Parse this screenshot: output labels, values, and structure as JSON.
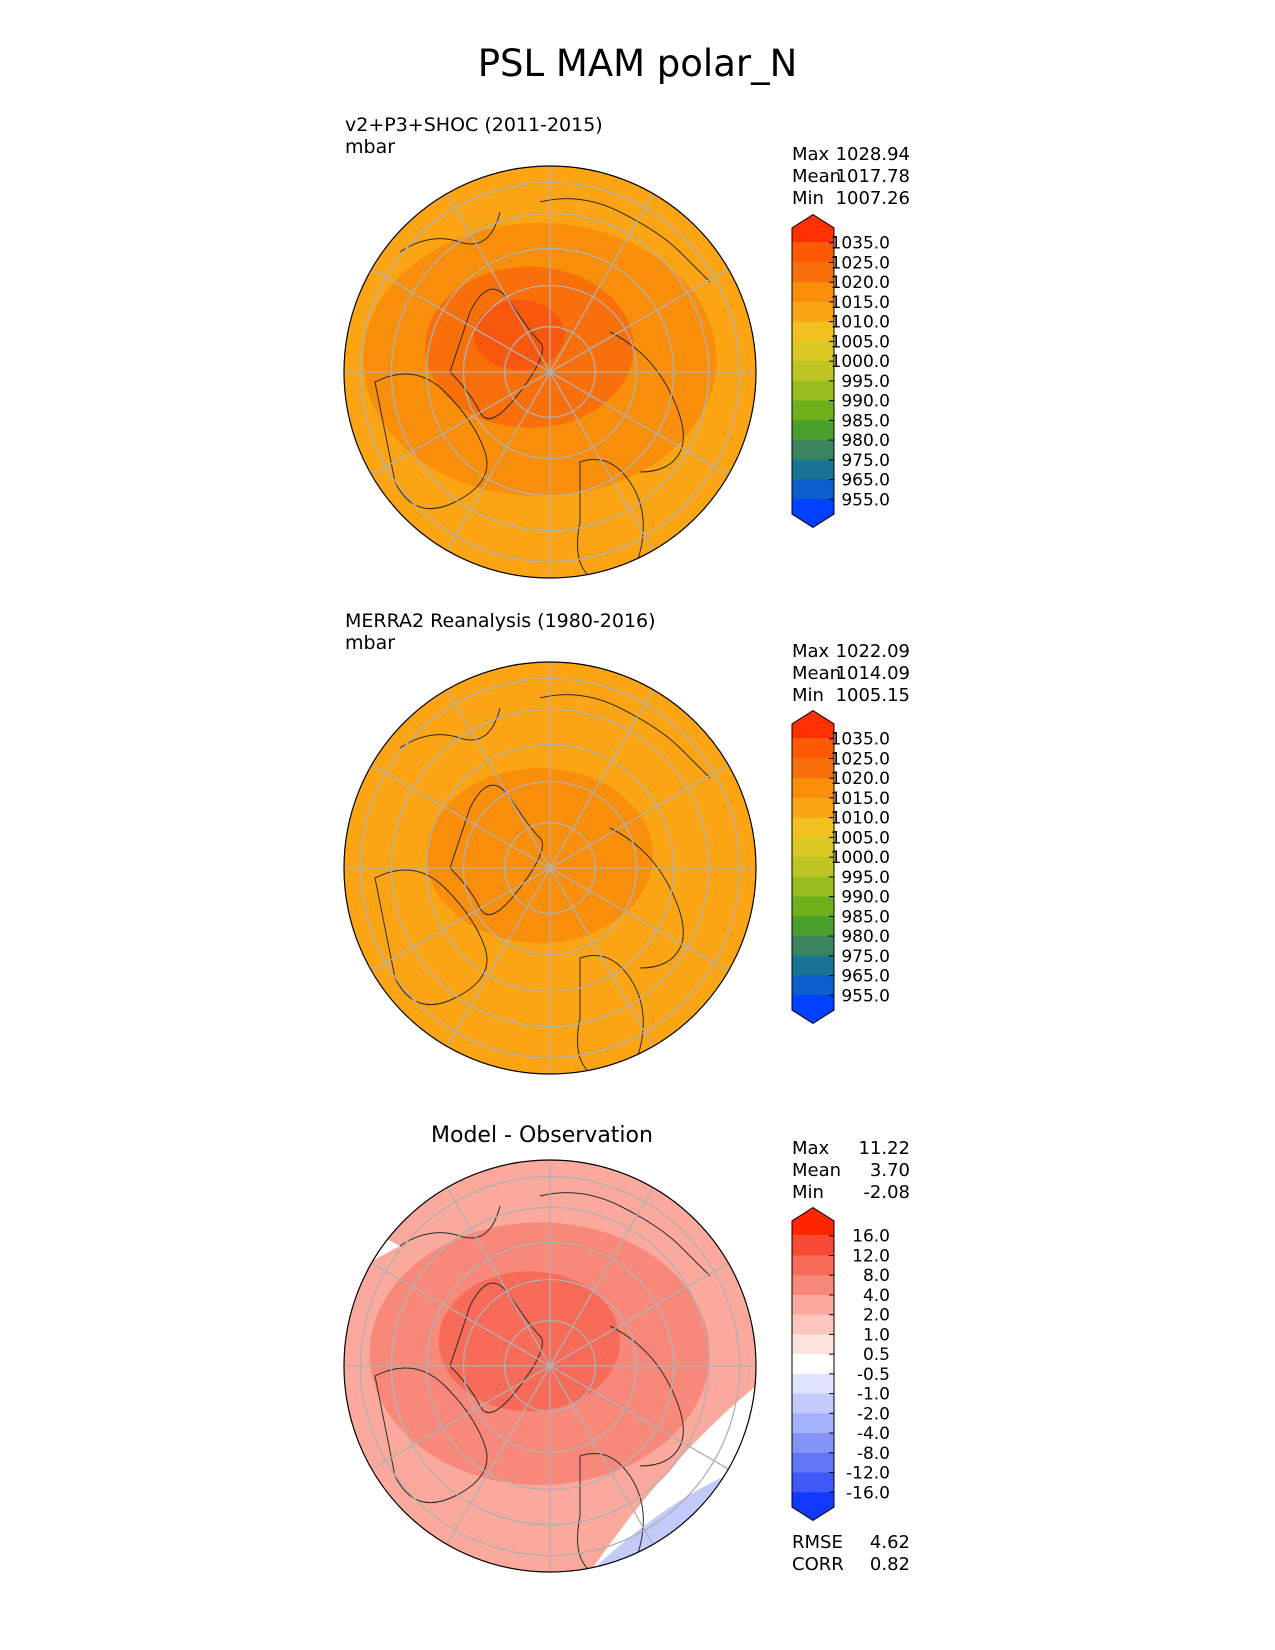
{
  "figure_title": "PSL MAM polar_N",
  "panels": [
    {
      "id": "model",
      "title_lines": [
        "v2+P3+SHOC (2011-2015)",
        "mbar"
      ],
      "center_title": "",
      "stats": [
        {
          "label": "Max",
          "value": "1028.94"
        },
        {
          "label": "Mean",
          "value": "1017.78"
        },
        {
          "label": "Min",
          "value": "1007.26"
        }
      ],
      "colorbar": "abs",
      "map_levels": [
        {
          "r": 1.0,
          "color": "#FBA515"
        },
        {
          "r": 0.78,
          "color": "#F98E0B"
        },
        {
          "r": 0.46,
          "color": "#F96F0A"
        },
        {
          "r": 0.2,
          "color": "#F7580D"
        }
      ]
    },
    {
      "id": "obs",
      "title_lines": [
        "MERRA2 Reanalysis (1980-2016)",
        "mbar"
      ],
      "center_title": "",
      "stats": [
        {
          "label": "Max",
          "value": "1022.09"
        },
        {
          "label": "Mean",
          "value": "1014.09"
        },
        {
          "label": "Min",
          "value": "1005.15"
        }
      ],
      "colorbar": "abs",
      "map_levels": [
        {
          "r": 1.0,
          "color": "#FBA515"
        },
        {
          "r": 0.5,
          "color": "#F98E0B"
        }
      ]
    },
    {
      "id": "diff",
      "title_lines": [],
      "center_title": "Model - Observation",
      "stats": [
        {
          "label": "Max",
          "value": "11.22"
        },
        {
          "label": "Mean",
          "value": "3.70"
        },
        {
          "label": "Min",
          "value": "-2.08"
        }
      ],
      "extra_stats": [
        {
          "label": "RMSE",
          "value": "4.62"
        },
        {
          "label": "CORR",
          "value": "0.82"
        }
      ],
      "colorbar": "diff",
      "map_levels": [
        {
          "r": 1.0,
          "color": "#FBA99C"
        },
        {
          "r": 0.75,
          "color": "#F8897A"
        },
        {
          "r": 0.4,
          "color": "#F76B58"
        }
      ]
    }
  ],
  "colorbars": {
    "abs": {
      "labels": [
        "1035.0",
        "1025.0",
        "1020.0",
        "1015.0",
        "1010.0",
        "1005.0",
        "1000.0",
        "995.0",
        "990.0",
        "985.0",
        "980.0",
        "975.0",
        "965.0",
        "955.0"
      ],
      "colors": [
        "#FF3000",
        "#FC5A03",
        "#F96F0A",
        "#F98E0B",
        "#FBA515",
        "#F3C11F",
        "#DBC923",
        "#BDC424",
        "#97BC1E",
        "#6DB01A",
        "#4A9F2D",
        "#3A8460",
        "#177493",
        "#0A5FCC",
        "#0040FF"
      ]
    },
    "diff": {
      "labels": [
        "16.0",
        "12.0",
        "8.0",
        "4.0",
        "2.0",
        "1.0",
        "0.5",
        "-0.5",
        "-1.0",
        "-2.0",
        "-4.0",
        "-8.0",
        "-12.0",
        "-16.0"
      ],
      "colors": [
        "#FF2600",
        "#F84A32",
        "#F76B58",
        "#F8897A",
        "#FBA99C",
        "#FCC6BD",
        "#FDE3DD",
        "#FFFFFF",
        "#DFE5FE",
        "#C2CBFC",
        "#A3B0FA",
        "#8393F8",
        "#6176F7",
        "#3E59F8",
        "#1339FF"
      ]
    }
  }
}
